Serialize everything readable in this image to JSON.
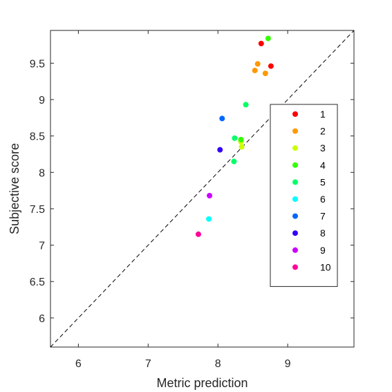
{
  "chart_data": {
    "type": "scatter",
    "xlabel": "Metric prediction",
    "ylabel": "Subjective score",
    "xlim": [
      5.6,
      9.95
    ],
    "ylim": [
      5.6,
      9.95
    ],
    "xticks": [
      6,
      7,
      8,
      9
    ],
    "yticks": [
      6,
      6.5,
      7,
      7.5,
      8,
      8.5,
      9,
      9.5
    ],
    "reference_line": "y = x (dashed)",
    "grid": false,
    "legend_position": "right",
    "series": [
      {
        "name": "1",
        "color": "#ff0000",
        "points": [
          [
            8.62,
            9.77
          ],
          [
            8.76,
            9.46
          ]
        ]
      },
      {
        "name": "2",
        "color": "#ff9900",
        "points": [
          [
            8.57,
            9.49
          ],
          [
            8.53,
            9.4
          ],
          [
            8.68,
            9.36
          ]
        ]
      },
      {
        "name": "3",
        "color": "#ccff00",
        "points": [
          [
            8.34,
            8.35
          ],
          [
            8.33,
            8.42
          ]
        ]
      },
      {
        "name": "4",
        "color": "#33ff00",
        "points": [
          [
            8.72,
            9.84
          ],
          [
            8.33,
            8.45
          ]
        ]
      },
      {
        "name": "5",
        "color": "#00ff66",
        "points": [
          [
            8.4,
            8.93
          ],
          [
            8.24,
            8.47
          ],
          [
            8.23,
            8.15
          ]
        ]
      },
      {
        "name": "6",
        "color": "#00ffff",
        "points": [
          [
            7.87,
            7.36
          ]
        ]
      },
      {
        "name": "7",
        "color": "#0066ff",
        "points": [
          [
            8.06,
            8.74
          ]
        ]
      },
      {
        "name": "8",
        "color": "#3300ff",
        "points": [
          [
            8.03,
            8.31
          ]
        ]
      },
      {
        "name": "9",
        "color": "#cc00ff",
        "points": [
          [
            7.88,
            7.68
          ]
        ]
      },
      {
        "name": "10",
        "color": "#ff0099",
        "points": [
          [
            7.72,
            7.15
          ]
        ]
      }
    ]
  }
}
